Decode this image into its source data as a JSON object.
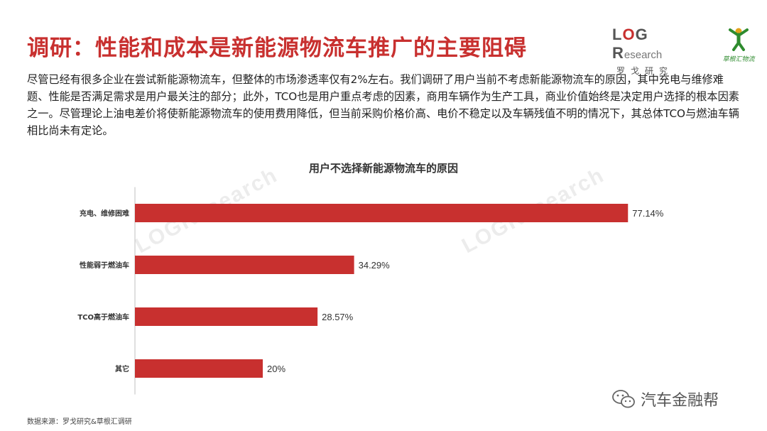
{
  "title": "调研：性能和成本是新能源物流车推广的主要阻碍",
  "logo_logr": {
    "brand_letters": "LOGR",
    "research": "esearch",
    "cn": "罗戈研究"
  },
  "logo_cgh": {
    "caption": "草根汇物流"
  },
  "intro": "尽管已经有很多企业在尝试新能源物流车，但整体的市场渗透率仅有2%左右。我们调研了用户当前不考虑新能源物流车的原因，其中充电与维修难题、性能是否满足需求是用户最关注的部分；此外，TCO也是用户重点考虑的因素，商用车辆作为生产工具，商业价值始终是决定用户选择的根本因素之一。尽管理论上油电差价将使新能源物流车的使用费用降低，但当前采购价格价高、电价不稳定以及车辆残值不明的情况下，其总体TCO与燃油车辆相比尚未有定论。",
  "source": "数据来源：罗戈研究&草根汇调研",
  "wechat": {
    "account": "汽车金融帮",
    "icon": "wechat-icon"
  },
  "colors": {
    "title": "#c8302f",
    "bar": "#c8302f"
  },
  "chart_data": {
    "type": "bar",
    "orientation": "horizontal",
    "title": "用户不选择新能源物流车的原因",
    "categories": [
      "充电、维修困难",
      "性能弱于燃油车",
      "TCO高于燃油车",
      "其它"
    ],
    "values": [
      77.14,
      34.29,
      28.57,
      20
    ],
    "value_labels": [
      "77.14%",
      "34.29%",
      "28.57%",
      "20%"
    ],
    "unit": "%",
    "xlim": [
      0,
      100
    ],
    "grid": false,
    "legend": "none",
    "axis_line": "left"
  }
}
